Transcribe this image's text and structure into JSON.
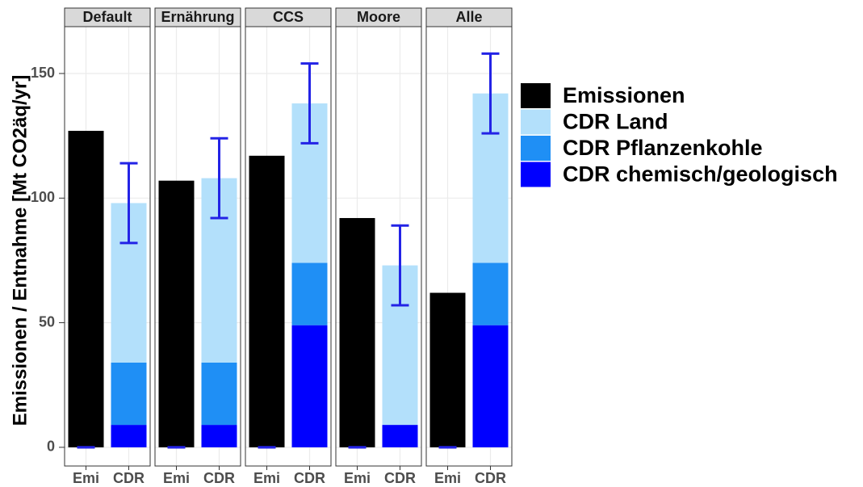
{
  "chart_data": {
    "type": "bar",
    "stacked": true,
    "ylabel": "Emissionen / Entnahme [Mt CO2äq/yr]",
    "ylim": [
      -7.5,
      168.8
    ],
    "yticks": [
      0,
      50,
      100,
      150
    ],
    "grid": true,
    "legend_position": "right",
    "categories": [
      "Emi",
      "CDR"
    ],
    "series": [
      {
        "name": "Emissionen",
        "color": "#000000"
      },
      {
        "name": "CDR Land",
        "color": "#b3e0fb"
      },
      {
        "name": "CDR Pflanzenkohle",
        "color": "#1f8ff5"
      },
      {
        "name": "CDR chemisch/geologisch",
        "color": "#0000ff"
      }
    ],
    "error_color": "#2323e6",
    "facets": [
      {
        "title": "Default",
        "values": [
          [
            127,
            null
          ],
          [
            null,
            64
          ],
          [
            null,
            25
          ],
          [
            null,
            9
          ]
        ],
        "error_center": [
          0,
          98
        ],
        "error": [
          0,
          16
        ]
      },
      {
        "title": "Ernährung",
        "values": [
          [
            107,
            null
          ],
          [
            null,
            74
          ],
          [
            null,
            25
          ],
          [
            null,
            9
          ]
        ],
        "error_center": [
          0,
          108
        ],
        "error": [
          0,
          16
        ]
      },
      {
        "title": "CCS",
        "values": [
          [
            117,
            null
          ],
          [
            null,
            64
          ],
          [
            null,
            25
          ],
          [
            null,
            49
          ]
        ],
        "error_center": [
          0,
          138
        ],
        "error": [
          0,
          16
        ]
      },
      {
        "title": "Moore",
        "values": [
          [
            92,
            null
          ],
          [
            null,
            64
          ],
          [
            null,
            0
          ],
          [
            null,
            9
          ]
        ],
        "error_center": [
          0,
          73
        ],
        "error": [
          0,
          16
        ]
      },
      {
        "title": "Alle",
        "values": [
          [
            62,
            null
          ],
          [
            null,
            68
          ],
          [
            null,
            25
          ],
          [
            null,
            49
          ]
        ],
        "error_center": [
          0,
          142
        ],
        "error": [
          0,
          16
        ]
      }
    ]
  }
}
